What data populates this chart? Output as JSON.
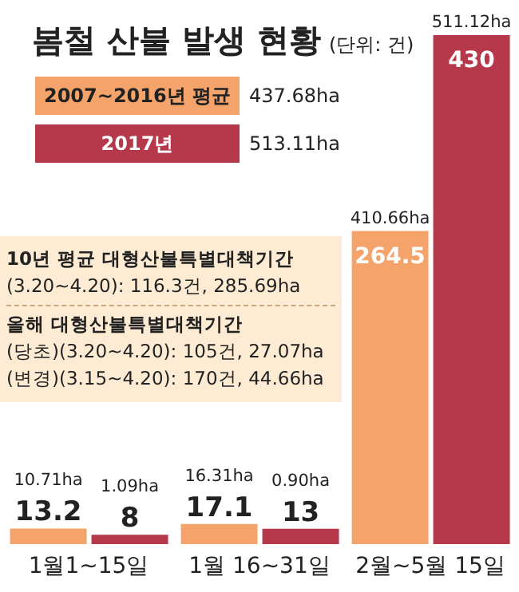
{
  "chart_data": {
    "type": "bar",
    "title": "봄철 산불 발생 현황",
    "subtitle": "(단위: 건)",
    "categories": [
      "1월1~15일",
      "1월 16~31일",
      "2월~5월 15일"
    ],
    "series": [
      {
        "name": "2007~2016년 평균",
        "color": "#f4a46a",
        "values": [
          13.2,
          17.1,
          264.5
        ]
      },
      {
        "name": "2017년",
        "color": "#b5394a",
        "values": [
          8,
          13,
          430
        ]
      }
    ],
    "data_labels": true,
    "legend": "top left",
    "annotations": [
      "437.68ha",
      "513.11ha",
      "10년 평균 대형산불특별대책기간",
      "(3.20~4.20): 116.3건, 285.69ha",
      "올해 대형산불특별대책기간",
      "(당초)(3.20~4.20): 105건, 27.07ha",
      "(변경)(3.15~4.20): 170건, 44.66ha",
      {
        "text": "10.71ha",
        "x": "1월1~15일",
        "y": 13.2
      },
      {
        "text": "1.09ha",
        "x": "1월1~15일",
        "y": 8
      },
      {
        "text": "16.31ha",
        "x": "1월 16~31일",
        "y": 17.1
      },
      {
        "text": "0.90ha",
        "x": "1월 16~31일",
        "y": 13
      },
      {
        "text": "410.66ha",
        "x": "2월~5월 15일",
        "y": 264.5
      },
      {
        "text": "511.12ha",
        "x": "2월~5월 15일",
        "y": 430
      }
    ]
  }
}
